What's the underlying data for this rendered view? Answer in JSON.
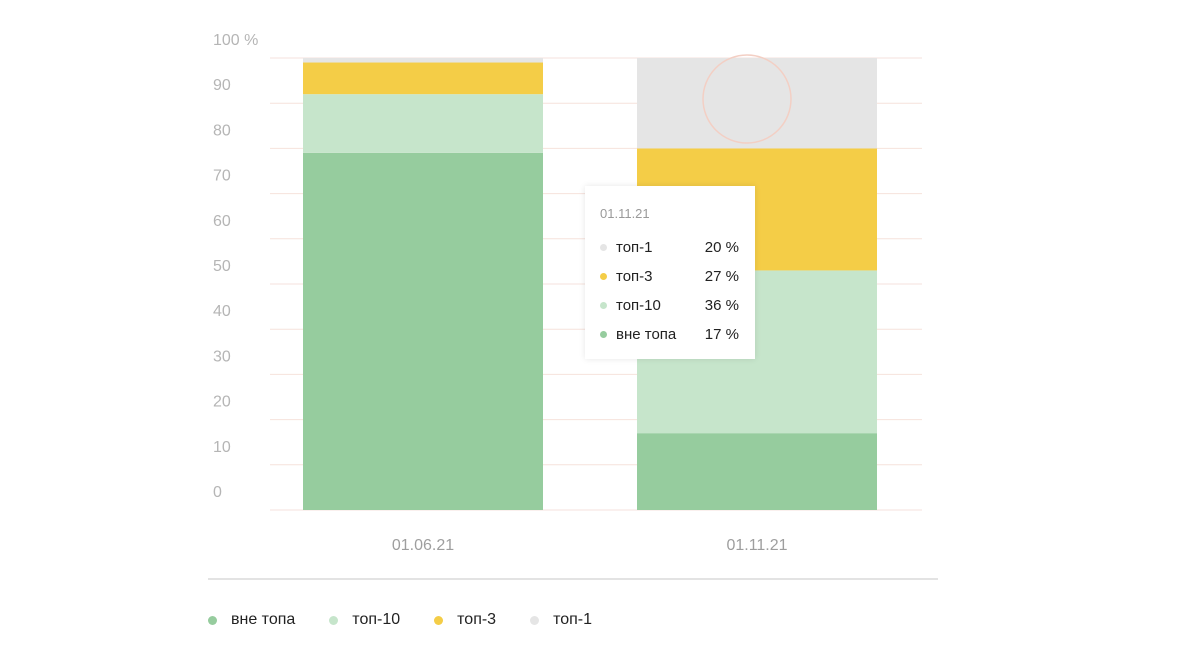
{
  "chart_data": {
    "type": "bar",
    "stacked": true,
    "categories": [
      "01.06.21",
      "01.11.21"
    ],
    "series": [
      {
        "name": "вне топа",
        "color": "#96cc9e",
        "values": [
          79,
          17
        ]
      },
      {
        "name": "топ-10",
        "color": "#c6e5cb",
        "values": [
          13,
          36
        ]
      },
      {
        "name": "топ-3",
        "color": "#f4cd47",
        "values": [
          7,
          27
        ]
      },
      {
        "name": "топ-1",
        "color": "#e5e5e5",
        "values": [
          1,
          20
        ]
      }
    ],
    "y_ticks": [
      "100 %",
      "90",
      "80",
      "70",
      "60",
      "50",
      "40",
      "30",
      "20",
      "10",
      "0"
    ],
    "ylim": [
      0,
      100
    ],
    "grid": true,
    "grid_color": "#f6e2dc",
    "legend_position": "bottom-left"
  },
  "tooltip": {
    "title": "01.11.21",
    "rows": [
      {
        "name": "топ-1",
        "value": "20 %",
        "color": "#e5e5e5"
      },
      {
        "name": "топ-3",
        "value": "27 %",
        "color": "#f4cd47"
      },
      {
        "name": "топ-10",
        "value": "36 %",
        "color": "#c6e5cb"
      },
      {
        "name": "вне топа",
        "value": "17 %",
        "color": "#96cc9e"
      }
    ]
  },
  "legend": [
    {
      "name": "вне топа",
      "color": "#96cc9e"
    },
    {
      "name": "топ-10",
      "color": "#c6e5cb"
    },
    {
      "name": "топ-3",
      "color": "#f4cd47"
    },
    {
      "name": "топ-1",
      "color": "#e5e5e5"
    }
  ]
}
